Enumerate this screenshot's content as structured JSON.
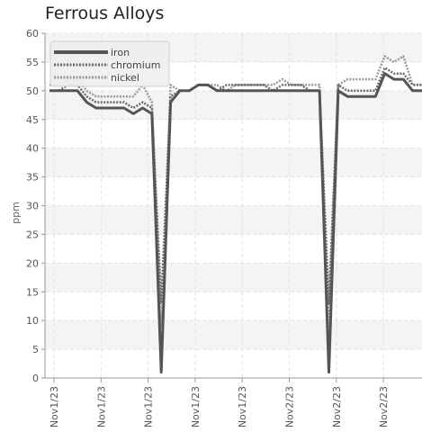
{
  "chart_data": {
    "type": "line",
    "title": "Ferrous Alloys",
    "ylabel": "ppm",
    "ylim": [
      0,
      60
    ],
    "yticks": [
      0,
      5,
      10,
      15,
      20,
      25,
      30,
      35,
      40,
      45,
      50,
      55,
      60
    ],
    "grid": true,
    "legend_position": "top-left",
    "x_ticks": [
      "Nov1/23",
      "Nov1/23",
      "Nov1/23",
      "Nov1/23",
      "Nov1/23",
      "Nov2/23",
      "Nov2/23",
      "Nov2/23"
    ],
    "series": [
      {
        "name": "iron",
        "color": "#555555",
        "style": "solid",
        "values": [
          50,
          50,
          50,
          50,
          48,
          47,
          47,
          47,
          47,
          46,
          47,
          46,
          1,
          48,
          50,
          50,
          51,
          51,
          50,
          50,
          50,
          50,
          50,
          50,
          50,
          50,
          50,
          50,
          50,
          50,
          1,
          50,
          49,
          49,
          49,
          49,
          53,
          52,
          52,
          50,
          50
        ]
      },
      {
        "name": "chromium",
        "color": "#6a6a6a",
        "style": "dotted",
        "values": [
          50,
          50,
          51,
          51,
          49,
          48,
          48,
          48,
          48,
          47,
          48,
          47,
          13,
          49,
          50,
          50,
          51,
          51,
          50,
          51,
          51,
          51,
          51,
          51,
          50,
          51,
          51,
          51,
          50,
          50,
          13,
          51,
          50,
          50,
          50,
          50,
          54,
          53,
          53,
          51,
          51
        ]
      },
      {
        "name": "nickel",
        "color": "#9a9a9a",
        "style": "dotted",
        "values": [
          51,
          51,
          52,
          52,
          50,
          49,
          49,
          49,
          49,
          49,
          51,
          48,
          9,
          51,
          50,
          50,
          51,
          51,
          51,
          50,
          51,
          51,
          51,
          51,
          51,
          52,
          51,
          51,
          51,
          51,
          9,
          51,
          52,
          52,
          52,
          52,
          56,
          55,
          56,
          51,
          51
        ]
      }
    ]
  }
}
